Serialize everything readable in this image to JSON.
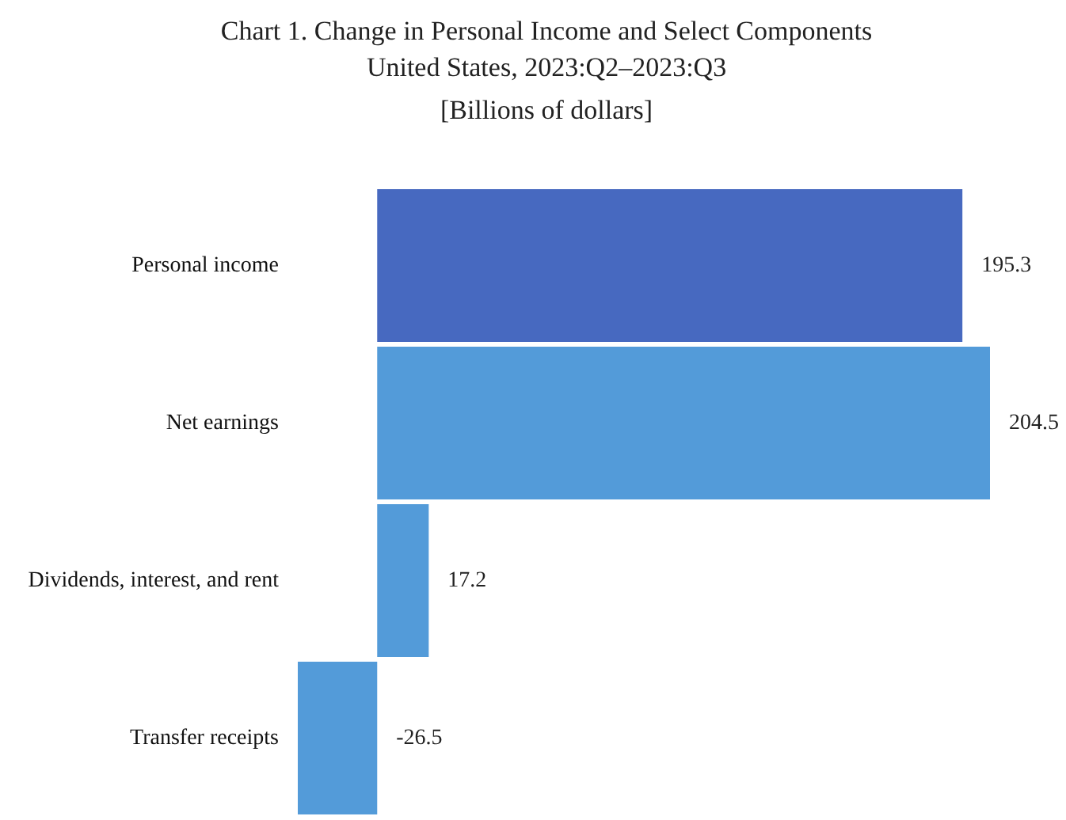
{
  "chart_data": {
    "type": "bar",
    "orientation": "horizontal",
    "title": "Chart 1. Change in Personal Income and Select Components",
    "subtitle": "United States, 2023:Q2–2023:Q3",
    "annotations": [
      "[Billions of dollars]"
    ],
    "categories": [
      "Personal income",
      "Net earnings",
      "Dividends, interest, and rent",
      "Transfer receipts"
    ],
    "values": [
      195.3,
      204.5,
      17.2,
      -26.5
    ],
    "colors": [
      "#4769c0",
      "#539bd9",
      "#539bd9",
      "#539bd9"
    ],
    "data_labels": true
  }
}
